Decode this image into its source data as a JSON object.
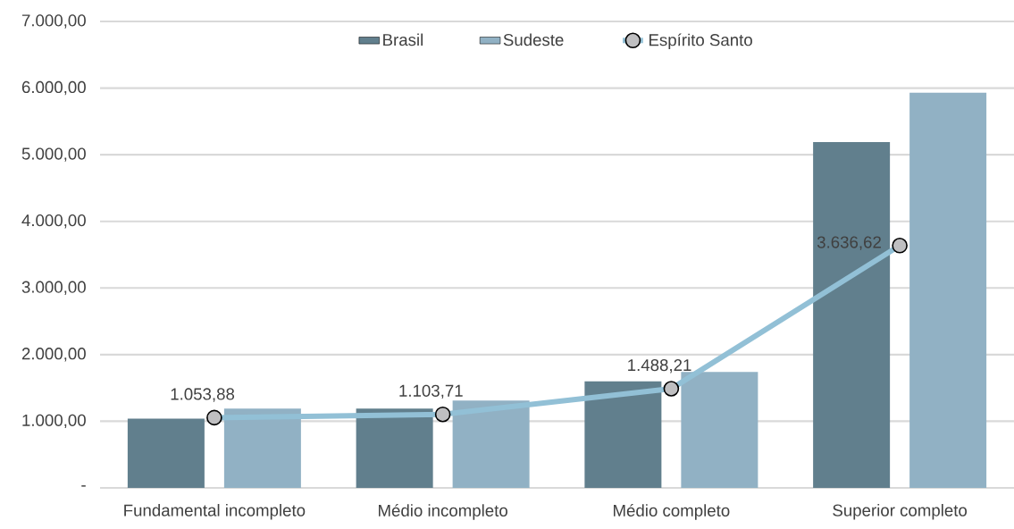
{
  "chart_data": {
    "type": "bar",
    "categories": [
      "Fundamental incompleto",
      "Médio incompleto",
      "Médio completo",
      "Superior completo"
    ],
    "series": [
      {
        "name": "Brasil",
        "color": "#617f8d",
        "values": [
          1040,
          1190,
          1600,
          5190
        ]
      },
      {
        "name": "Sudeste",
        "color": "#91b1c4",
        "values": [
          1190,
          1310,
          1740,
          5930
        ]
      },
      {
        "name": "Espírito Santo",
        "type": "line",
        "color": "#92c0d6",
        "marker": "circle",
        "values": [
          1053.88,
          1103.71,
          1488.21,
          3636.62
        ],
        "value_labels": [
          "1.053,88",
          "1.103,71",
          "1.488,21",
          "3.636,62"
        ]
      }
    ],
    "ylim": [
      0,
      7000
    ],
    "yticks": [
      {
        "value": 0,
        "label": "-"
      },
      {
        "value": 1000,
        "label": "1.000,00"
      },
      {
        "value": 2000,
        "label": "2.000,00"
      },
      {
        "value": 3000,
        "label": "3.000,00"
      },
      {
        "value": 4000,
        "label": "4.000,00"
      },
      {
        "value": 5000,
        "label": "5.000,00"
      },
      {
        "value": 6000,
        "label": "6.000,00"
      },
      {
        "value": 7000,
        "label": "7.000,00"
      }
    ],
    "grid": "y",
    "legend": "top"
  }
}
